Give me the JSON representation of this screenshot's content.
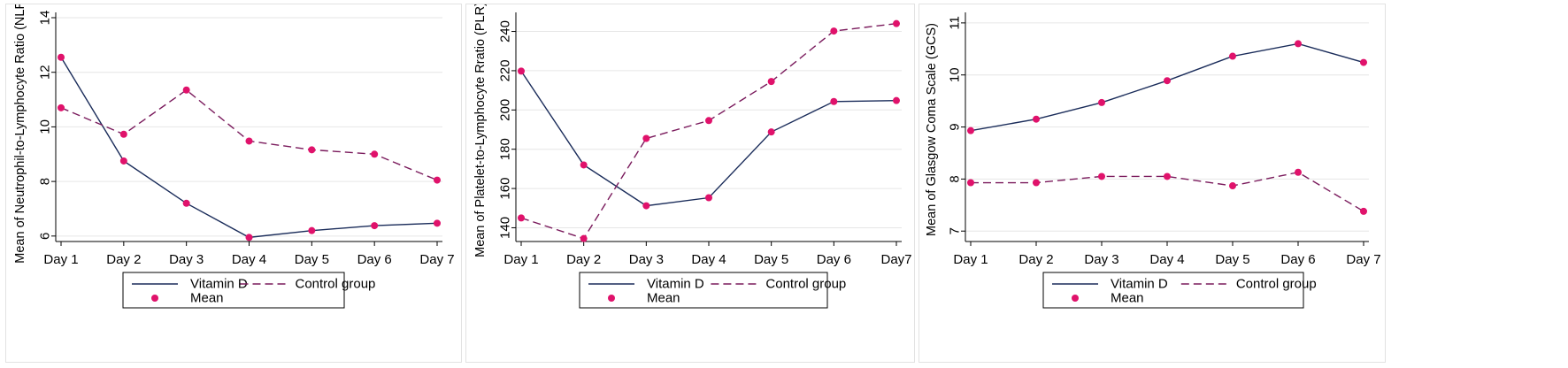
{
  "chart_data": [
    {
      "type": "line",
      "ylabel": "Mean of Neutrophil-to-Lymphocyte Ratio (NLR)",
      "xlabel": "",
      "categories": [
        "Day 1",
        "Day 2",
        "Day 3",
        "Day 4",
        "Day 5",
        "Day 6",
        "Day 7"
      ],
      "ylim": [
        5.8,
        14
      ],
      "yticks": [
        "6",
        "8",
        "10",
        "12",
        "14"
      ],
      "grid": true,
      "legend_position": "bottom",
      "legend": {
        "series1": "Vitamin D",
        "series2": "Control group",
        "marker": "Mean"
      },
      "series": [
        {
          "name": "Vitamin D",
          "style": "solid",
          "color": "#1a2c5a",
          "values": [
            12.55,
            8.75,
            7.2,
            5.95,
            6.2,
            6.38,
            6.47
          ]
        },
        {
          "name": "Control group",
          "style": "dashed",
          "color": "#7a1a5c",
          "values": [
            10.7,
            9.73,
            11.35,
            9.48,
            9.16,
            9.0,
            8.05
          ]
        }
      ]
    },
    {
      "type": "line",
      "ylabel": "Mean of Platelet-to-Lymphocyte Rratio (PLR)",
      "xlabel": "",
      "categories": [
        "Day 1",
        "Day 2",
        "Day 3",
        "Day 4",
        "Day 5",
        "Day 6",
        "Day7"
      ],
      "ylim": [
        133,
        247
      ],
      "yticks": [
        "140",
        "160",
        "180",
        "200",
        "220",
        "240"
      ],
      "grid": true,
      "legend_position": "bottom",
      "legend": {
        "series1": "Vitamin D",
        "series2": "Control group",
        "marker": "Mean"
      },
      "series": [
        {
          "name": "Vitamin D",
          "style": "solid",
          "color": "#1a2c5a",
          "values": [
            219.8,
            172.0,
            151.2,
            155.3,
            188.8,
            204.3,
            204.8
          ]
        },
        {
          "name": "Control group",
          "style": "dashed",
          "color": "#7a1a5c",
          "values": [
            145.0,
            134.5,
            185.5,
            194.6,
            214.5,
            240.2,
            244.0
          ]
        }
      ]
    },
    {
      "type": "line",
      "ylabel": "Mean of Glasgow Coma Scale (GCS)",
      "xlabel": "",
      "categories": [
        "Day 1",
        "Day 2",
        "Day 3",
        "Day 4",
        "Day 5",
        "Day 6",
        "Day 7"
      ],
      "ylim": [
        6.8,
        11.1
      ],
      "yticks": [
        "7",
        "8",
        "9",
        "10",
        "11"
      ],
      "grid": true,
      "legend_position": "bottom",
      "legend": {
        "series1": "Vitamin D",
        "series2": "Control group",
        "marker": "Mean"
      },
      "series": [
        {
          "name": "Vitamin D",
          "style": "solid",
          "color": "#1a2c5a",
          "values": [
            8.93,
            9.15,
            9.47,
            9.89,
            10.36,
            10.6,
            10.24
          ]
        },
        {
          "name": "Control group",
          "style": "dashed",
          "color": "#7a1a5c",
          "values": [
            7.93,
            7.93,
            8.05,
            8.05,
            7.87,
            8.13,
            7.38
          ]
        }
      ]
    }
  ],
  "marker_color": "#e0126b",
  "grid_color": "#e6e6e6"
}
